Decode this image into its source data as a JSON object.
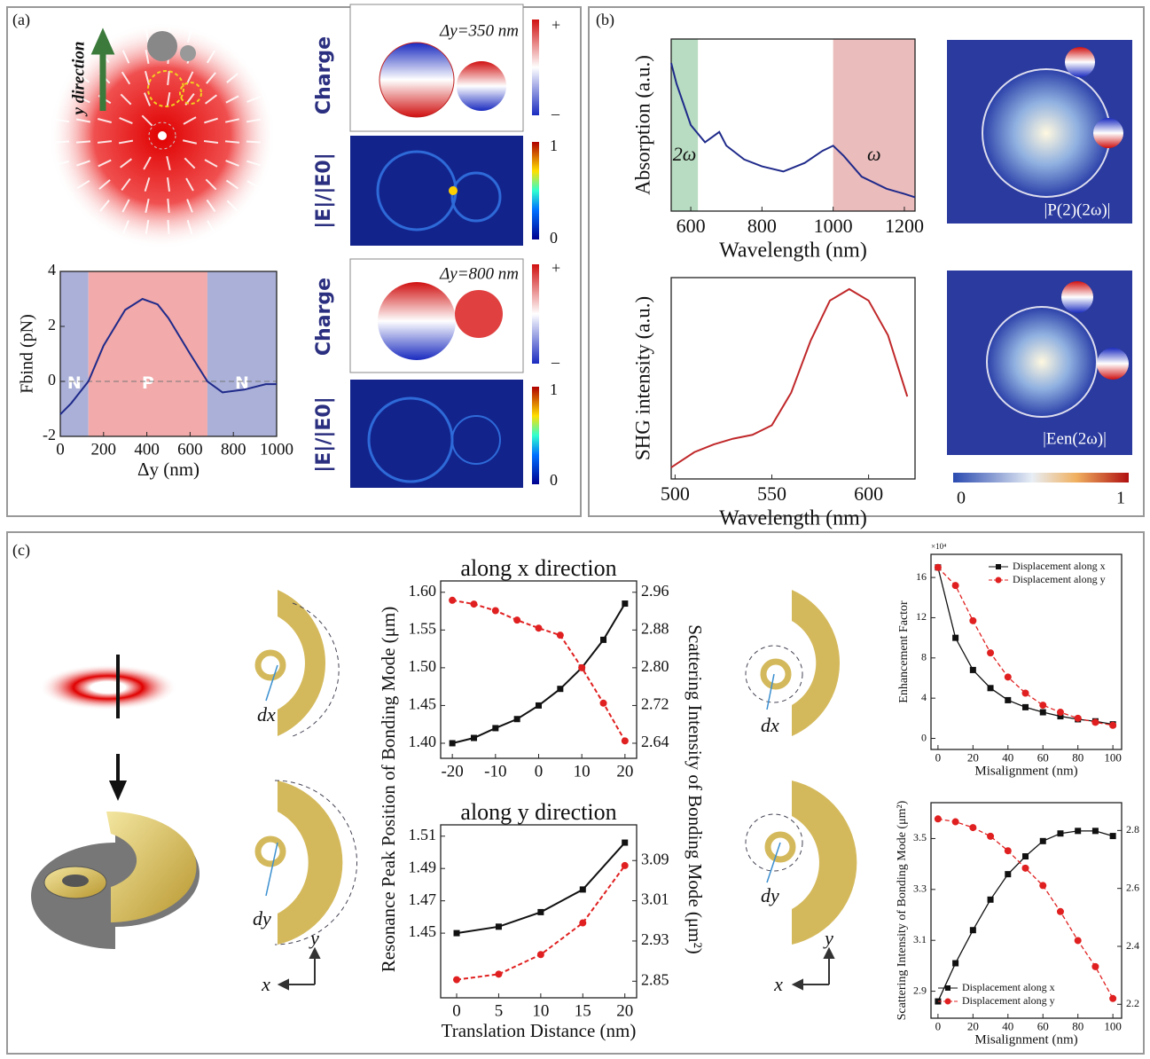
{
  "figure": {
    "panel_labels": [
      "(a)",
      "(b)",
      "(c)"
    ],
    "a": {
      "direction": "y direction",
      "charge": [
        "Charge",
        "Charge"
      ],
      "field": [
        "|E|/|E0|",
        "|E|/|E0|"
      ],
      "dy": [
        "Δy=350 nm",
        "Δy=800 nm"
      ],
      "charge_scale": [
        "+",
        "–",
        "+",
        "–"
      ],
      "field_scale": [
        "1",
        "0",
        "1",
        "0"
      ]
    },
    "b": {
      "maps": [
        "|P(2)(2ω)|",
        "|Een(2ω)|"
      ],
      "colorbar": [
        "0",
        "1"
      ]
    },
    "c": {
      "dx": [
        "dx",
        "dx"
      ],
      "dy": [
        "dy",
        "dy"
      ],
      "axes": [
        "y",
        "x",
        "y",
        "x"
      ],
      "ylabel": "Resonance Peak Position of Bonding Mode (μm)",
      "y2label": "Scattering Intensity of Bonding Mode (μm²)"
    }
  },
  "chart_data": [
    {
      "type": "line",
      "xlabel": "Δy (nm)",
      "ylabel": "Fbind (pN)",
      "x": [
        0,
        50,
        100,
        130,
        200,
        300,
        380,
        450,
        500,
        600,
        680,
        750,
        850,
        950,
        1000
      ],
      "series": [
        {
          "color": "#1f2a8a",
          "values": [
            -1.2,
            -0.8,
            -0.3,
            0,
            1.3,
            2.6,
            3.0,
            2.8,
            2.3,
            1.0,
            0,
            -0.4,
            -0.3,
            -0.1,
            -0.1
          ]
        }
      ],
      "regions": [
        {
          "x0": 0,
          "x1": 130,
          "color": "#aab0d8",
          "label": "N"
        },
        {
          "x0": 130,
          "x1": 680,
          "color": "#f2aaaa",
          "label": "P"
        },
        {
          "x0": 680,
          "x1": 1000,
          "color": "#aab0d8",
          "label": "N"
        }
      ],
      "hline": 0,
      "xlim": [
        0,
        1000
      ],
      "ylim": [
        -2,
        4
      ],
      "xticks": [
        0,
        200,
        400,
        600,
        800,
        1000
      ],
      "yticks": [
        -2,
        0,
        2,
        4
      ]
    },
    {
      "type": "line",
      "xlabel": "Wavelength (nm)",
      "ylabel": "Absorption (a.u.)",
      "x": [
        545,
        560,
        600,
        640,
        680,
        700,
        750,
        800,
        860,
        920,
        970,
        1000,
        1030,
        1080,
        1150,
        1200,
        1230
      ],
      "series": [
        {
          "color": "#1f2a8a",
          "values": [
            0.86,
            0.74,
            0.5,
            0.4,
            0.46,
            0.38,
            0.3,
            0.26,
            0.23,
            0.28,
            0.35,
            0.38,
            0.32,
            0.2,
            0.13,
            0.1,
            0.08
          ]
        }
      ],
      "regions": [
        {
          "x0": 545,
          "x1": 620,
          "color": "#b7dcc1",
          "label": "2ω"
        },
        {
          "x0": 1000,
          "x1": 1230,
          "color": "#ebbcbc",
          "label": "ω"
        }
      ],
      "xlim": [
        545,
        1230
      ],
      "ylim": [
        0,
        1
      ],
      "xticks": [
        600,
        800,
        1000,
        1200
      ],
      "yticks": []
    },
    {
      "type": "line",
      "xlabel": "Wavelength (nm)",
      "ylabel": "SHG intensity (a.u.)",
      "x": [
        498,
        510,
        520,
        530,
        540,
        550,
        560,
        570,
        580,
        590,
        600,
        610,
        620
      ],
      "series": [
        {
          "color": "#c0282a",
          "values": [
            0.06,
            0.14,
            0.18,
            0.21,
            0.23,
            0.28,
            0.45,
            0.72,
            0.93,
            0.99,
            0.93,
            0.75,
            0.43
          ]
        }
      ],
      "xlim": [
        498,
        624
      ],
      "ylim": [
        0,
        1.05
      ],
      "xticks": [
        500,
        550,
        600
      ],
      "yticks": []
    },
    {
      "type": "line",
      "title": "along x direction",
      "x": [
        -20,
        -15,
        -10,
        -5,
        0,
        5,
        10,
        15,
        20
      ],
      "series": [
        {
          "color": "#111111",
          "marker": "square",
          "values": [
            1.4,
            1.407,
            1.42,
            1.432,
            1.45,
            1.472,
            1.5,
            1.537,
            1.585
          ]
        },
        {
          "color": "#e02020",
          "marker": "circle",
          "dash": true,
          "axis": "y2",
          "values": [
            2.943,
            2.935,
            2.921,
            2.901,
            2.884,
            2.869,
            2.8,
            2.725,
            2.645
          ]
        }
      ],
      "xlim": [
        -22.7,
        22.7
      ],
      "ylim": [
        1.38,
        1.615
      ],
      "y2lim": [
        2.608,
        2.984
      ],
      "xticks": [
        -20,
        -10,
        0,
        10,
        20
      ],
      "yticks": [
        {
          "value": 1.4,
          "label": "1.40"
        },
        1.45,
        {
          "value": 1.5,
          "label": "1.50"
        },
        1.55,
        {
          "value": 1.6,
          "label": "1.60"
        }
      ],
      "y2ticks": [
        2.64,
        2.72,
        {
          "value": 2.8,
          "label": "2.80"
        },
        2.88,
        2.96
      ]
    },
    {
      "type": "line",
      "title": "along y direction",
      "xlabel": "Translation Distance (nm)",
      "x": [
        0,
        5,
        10,
        15,
        20
      ],
      "series": [
        {
          "color": "#111111",
          "marker": "square",
          "values": [
            1.45,
            1.454,
            1.463,
            1.477,
            1.506
          ]
        },
        {
          "color": "#e02020",
          "marker": "circle",
          "dash": true,
          "axis": "y2",
          "values": [
            2.853,
            2.864,
            2.903,
            2.966,
            3.08
          ]
        }
      ],
      "xlim": [
        -1.9,
        21.4
      ],
      "ylim": [
        1.41,
        1.517
      ],
      "y2lim": [
        2.817,
        3.161
      ],
      "xticks": [
        0,
        5,
        10,
        15,
        20
      ],
      "yticks": [
        1.45,
        1.47,
        1.49,
        1.51
      ],
      "y2ticks": [
        2.85,
        2.93,
        3.01,
        3.09
      ]
    },
    {
      "type": "line",
      "xlabel": "Misalignment (nm)",
      "ylabel": "Enhancement Factor",
      "ylabel_note": "×10⁴",
      "legend": "upper right",
      "x": [
        0,
        10,
        20,
        30,
        40,
        50,
        60,
        70,
        80,
        90,
        100
      ],
      "series": [
        {
          "name": "Displacement along x",
          "color": "#111111",
          "marker": "square",
          "values": [
            17,
            10,
            6.8,
            5,
            3.8,
            3.1,
            2.6,
            2.2,
            1.9,
            1.7,
            1.4
          ]
        },
        {
          "name": "Displacement along y",
          "color": "#e02020",
          "marker": "circle",
          "dash": true,
          "values": [
            17,
            15.2,
            11.7,
            8.5,
            6.1,
            4.5,
            3.3,
            2.6,
            2,
            1.6,
            1.3
          ]
        }
      ],
      "xlim": [
        -4,
        105
      ],
      "ylim": [
        -1.1,
        18.3
      ],
      "xticks": [
        0,
        20,
        40,
        60,
        80,
        100
      ],
      "yticks": [
        0,
        4,
        8,
        12,
        16
      ]
    },
    {
      "type": "line",
      "xlabel": "Misalignment (nm)",
      "ylabel": "Scattering Intensity of Bonding Mode (μm²)",
      "legend": "lower left",
      "x": [
        0,
        10,
        20,
        30,
        40,
        50,
        60,
        70,
        80,
        90,
        100
      ],
      "series": [
        {
          "name": "Displacement along x",
          "color": "#111111",
          "marker": "square",
          "values": [
            2.86,
            3.01,
            3.14,
            3.26,
            3.36,
            3.43,
            3.49,
            3.52,
            3.53,
            3.53,
            3.51
          ]
        },
        {
          "name": "Displacement along y",
          "color": "#e02020",
          "marker": "circle",
          "dash": true,
          "axis": "y2",
          "values": [
            2.84,
            2.83,
            2.81,
            2.78,
            2.73,
            2.67,
            2.61,
            2.52,
            2.42,
            2.33,
            2.22
          ]
        }
      ],
      "xlim": [
        -4,
        105
      ],
      "ylim": [
        2.794,
        3.641
      ],
      "y2lim": [
        2.152,
        2.896
      ],
      "xticks": [
        0,
        20,
        40,
        60,
        80,
        100
      ],
      "yticks": [
        2.9,
        3.1,
        3.3,
        3.5
      ],
      "y2ticks": [
        2.2,
        2.4,
        2.6,
        2.8
      ]
    }
  ]
}
